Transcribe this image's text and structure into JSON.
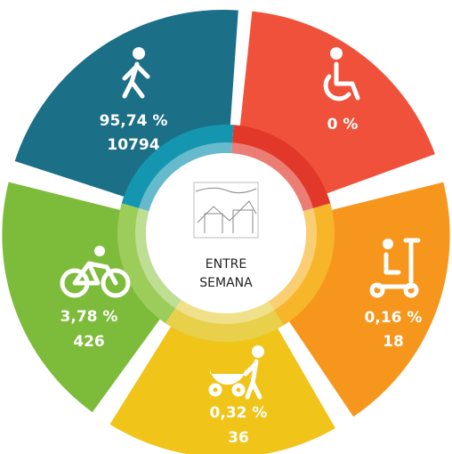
{
  "center": {
    "lines": [
      "ENTRE",
      "SEMANA"
    ]
  },
  "segments": [
    {
      "mode": "walking",
      "percent": "95,74 %",
      "count": "10794"
    },
    {
      "mode": "wheelchair",
      "percent": "0 %"
    },
    {
      "mode": "scooter",
      "percent": "0,16 %",
      "count": "18"
    },
    {
      "mode": "stroller",
      "percent": "0,32 %",
      "count": "36"
    },
    {
      "mode": "bicycle",
      "percent": "3,78 %",
      "count": "426"
    }
  ]
}
